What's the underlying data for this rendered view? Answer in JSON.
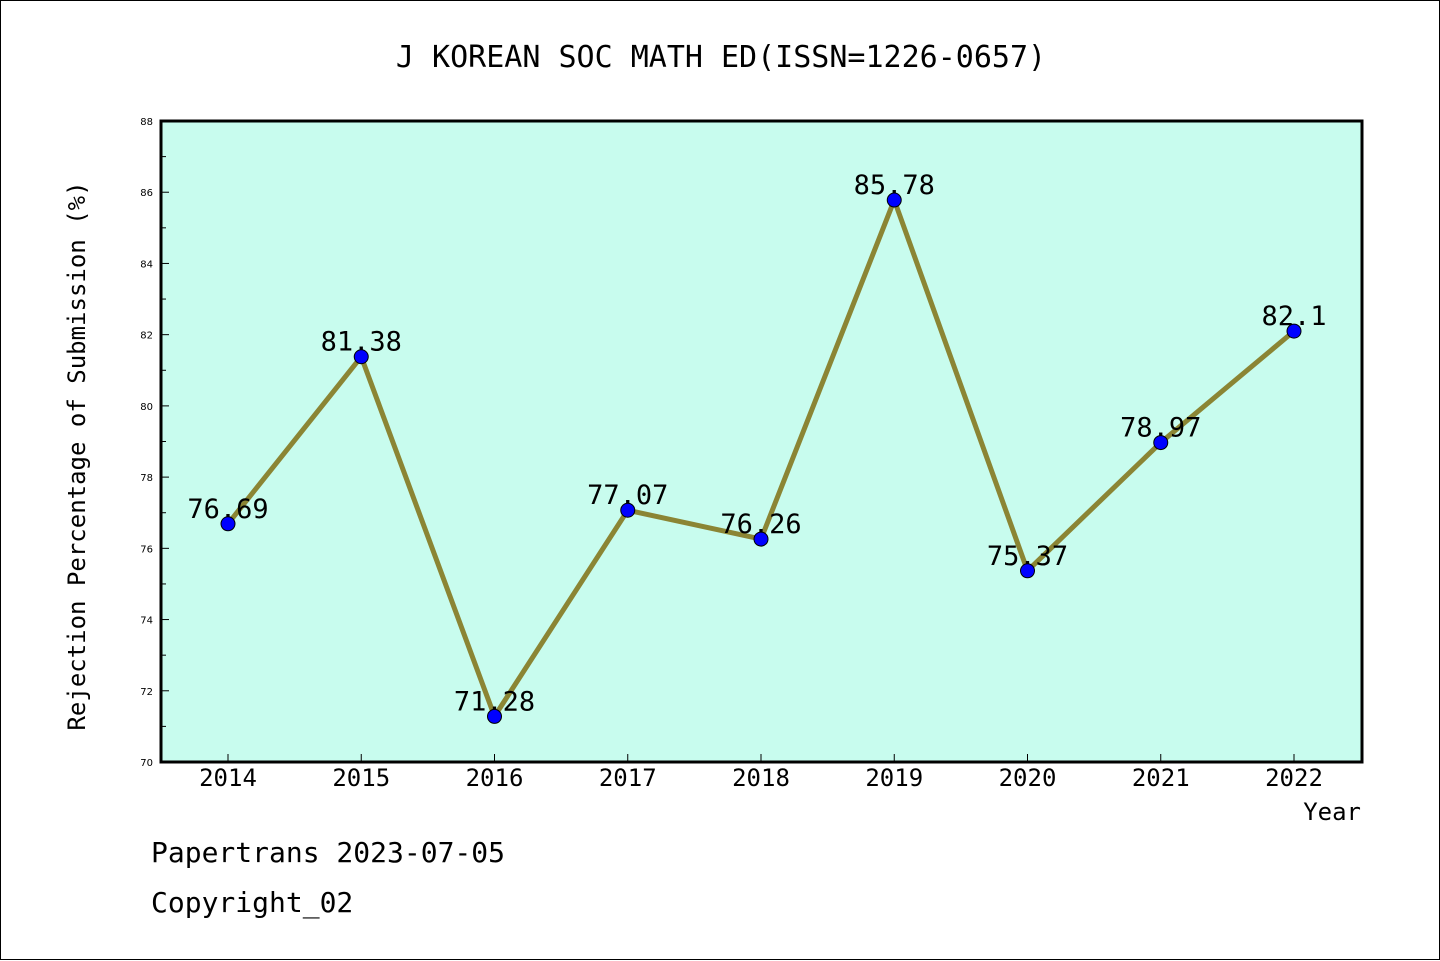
{
  "chart_data": {
    "type": "line",
    "title": "J KOREAN SOC MATH ED(ISSN=1226-0657)",
    "xlabel": "Year",
    "ylabel": "Rejection Percentage of Submission (%)",
    "categories": [
      "2014",
      "2015",
      "2016",
      "2017",
      "2018",
      "2019",
      "2020",
      "2021",
      "2022"
    ],
    "series": [
      {
        "values": [
          76.69,
          81.38,
          71.28,
          77.07,
          76.26,
          85.78,
          75.37,
          78.97,
          82.1
        ],
        "labels": [
          "76.69",
          "81.38",
          "71.28",
          "77.07",
          "76.26",
          "85.78",
          "75.37",
          "78.97",
          "82.1"
        ]
      }
    ],
    "ylim": [
      70,
      88
    ],
    "yticks": [
      "70",
      "72",
      "74",
      "76",
      "78",
      "80",
      "82",
      "84",
      "86",
      "88"
    ],
    "grid": false,
    "colors": {
      "plot_background": "#c8fcee",
      "line": "#8b8534",
      "marker": "#0000ff",
      "axes": "#000000"
    }
  },
  "footer": {
    "line1": "Papertrans 2023-07-05",
    "line2": "Copyright_02"
  }
}
